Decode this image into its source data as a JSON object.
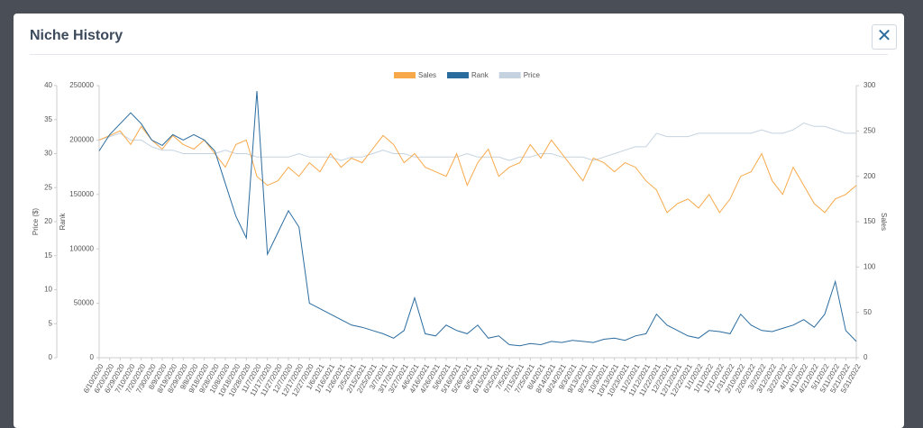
{
  "header": {
    "title": "Niche History"
  },
  "chart_data": {
    "type": "line",
    "categories": [
      "6/10/2020",
      "6/20/2020",
      "6/29/2020",
      "7/10/2020",
      "7/20/2020",
      "7/30/2020",
      "8/9/2020",
      "8/19/2020",
      "8/29/2020",
      "9/8/2020",
      "9/18/2020",
      "9/28/2020",
      "10/8/2020",
      "10/18/2020",
      "10/28/2020",
      "11/7/2020",
      "11/17/2020",
      "11/27/2020",
      "12/7/2020",
      "12/17/2020",
      "12/27/2020",
      "1/6/2021",
      "1/16/2021",
      "1/26/2021",
      "2/5/2021",
      "2/15/2021",
      "2/25/2021",
      "3/7/2021",
      "3/17/2021",
      "3/27/2021",
      "4/6/2021",
      "4/16/2021",
      "4/26/2021",
      "5/6/2021",
      "5/16/2021",
      "5/26/2021",
      "6/5/2021",
      "6/15/2021",
      "6/25/2021",
      "7/5/2021",
      "7/15/2021",
      "7/25/2021",
      "8/4/2021",
      "8/14/2021",
      "8/24/2021",
      "9/3/2021",
      "9/13/2021",
      "9/23/2021",
      "10/3/2021",
      "10/13/2021",
      "10/23/2021",
      "11/2/2021",
      "11/12/2021",
      "11/22/2021",
      "12/2/2021",
      "12/12/2021",
      "12/22/2021",
      "1/1/2022",
      "1/11/2022",
      "1/21/2022",
      "1/31/2022",
      "2/10/2022",
      "2/20/2022",
      "3/2/2022",
      "3/12/2022",
      "3/22/2022",
      "4/1/2022",
      "4/11/2022",
      "4/21/2022",
      "5/1/2022",
      "5/11/2022",
      "5/21/2022",
      "5/31/2022"
    ],
    "series": [
      {
        "name": "Sales",
        "color": "#f7a94a",
        "axis": "y2",
        "values": [
          240,
          245,
          250,
          235,
          255,
          240,
          230,
          245,
          235,
          230,
          240,
          225,
          210,
          235,
          240,
          200,
          190,
          195,
          210,
          200,
          215,
          205,
          225,
          210,
          220,
          215,
          230,
          245,
          235,
          215,
          225,
          210,
          205,
          200,
          225,
          190,
          215,
          230,
          200,
          210,
          215,
          235,
          220,
          240,
          225,
          210,
          195,
          220,
          215,
          205,
          215,
          210,
          195,
          185,
          160,
          170,
          175,
          165,
          180,
          160,
          175,
          200,
          205,
          225,
          195,
          180,
          210,
          190,
          170,
          160,
          175,
          180,
          190
        ]
      },
      {
        "name": "Rank",
        "color": "#2b6c9f",
        "axis": "y3",
        "values": [
          190000,
          205000,
          215000,
          225000,
          215000,
          200000,
          195000,
          205000,
          200000,
          205000,
          200000,
          190000,
          160000,
          130000,
          110000,
          245000,
          95000,
          115000,
          135000,
          120000,
          50000,
          45000,
          40000,
          35000,
          30000,
          28000,
          25000,
          22000,
          18000,
          25000,
          55000,
          22000,
          20000,
          30000,
          25000,
          22000,
          30000,
          18000,
          20000,
          12000,
          11000,
          13000,
          12000,
          15000,
          14000,
          16000,
          15000,
          14000,
          17000,
          18000,
          16000,
          20000,
          22000,
          40000,
          30000,
          25000,
          20000,
          18000,
          25000,
          24000,
          22000,
          40000,
          30000,
          25000,
          24000,
          27000,
          30000,
          35000,
          28000,
          40000,
          70000,
          25000,
          15000
        ]
      },
      {
        "name": "Price",
        "color": "#c5d3e0",
        "axis": "y",
        "values": [
          32,
          32.5,
          33,
          32,
          32,
          31,
          30.5,
          30.5,
          30,
          30,
          30,
          30,
          30.5,
          30,
          30,
          29.5,
          29.5,
          29.5,
          29.5,
          30,
          29.5,
          29.5,
          29.5,
          29,
          29.5,
          29.5,
          30,
          30.5,
          30,
          30,
          29.5,
          29.5,
          29.5,
          29.5,
          29.5,
          30,
          29.5,
          29.5,
          29.5,
          29,
          29.5,
          29.5,
          30,
          30,
          29.5,
          29.5,
          29.5,
          29,
          29.5,
          30,
          30.5,
          31,
          31,
          33,
          32.5,
          32.5,
          32.5,
          33,
          33,
          33,
          33,
          33,
          33,
          33.5,
          33,
          33,
          33.5,
          34.5,
          34,
          34,
          33.5,
          33,
          33
        ]
      }
    ],
    "ylabel": "Price ($)",
    "ylim": [
      0,
      40
    ],
    "yticks": [
      0,
      5,
      10,
      15,
      20,
      25,
      30,
      35,
      40
    ],
    "y3label": "Rank",
    "y3lim": [
      0,
      250000
    ],
    "y3ticks": [
      0,
      50000,
      100000,
      150000,
      200000,
      250000
    ],
    "y2label": "Sales",
    "y2lim": [
      0,
      300
    ],
    "y2ticks": [
      0,
      50,
      100,
      150,
      200,
      250,
      300
    ],
    "legend": "top"
  }
}
